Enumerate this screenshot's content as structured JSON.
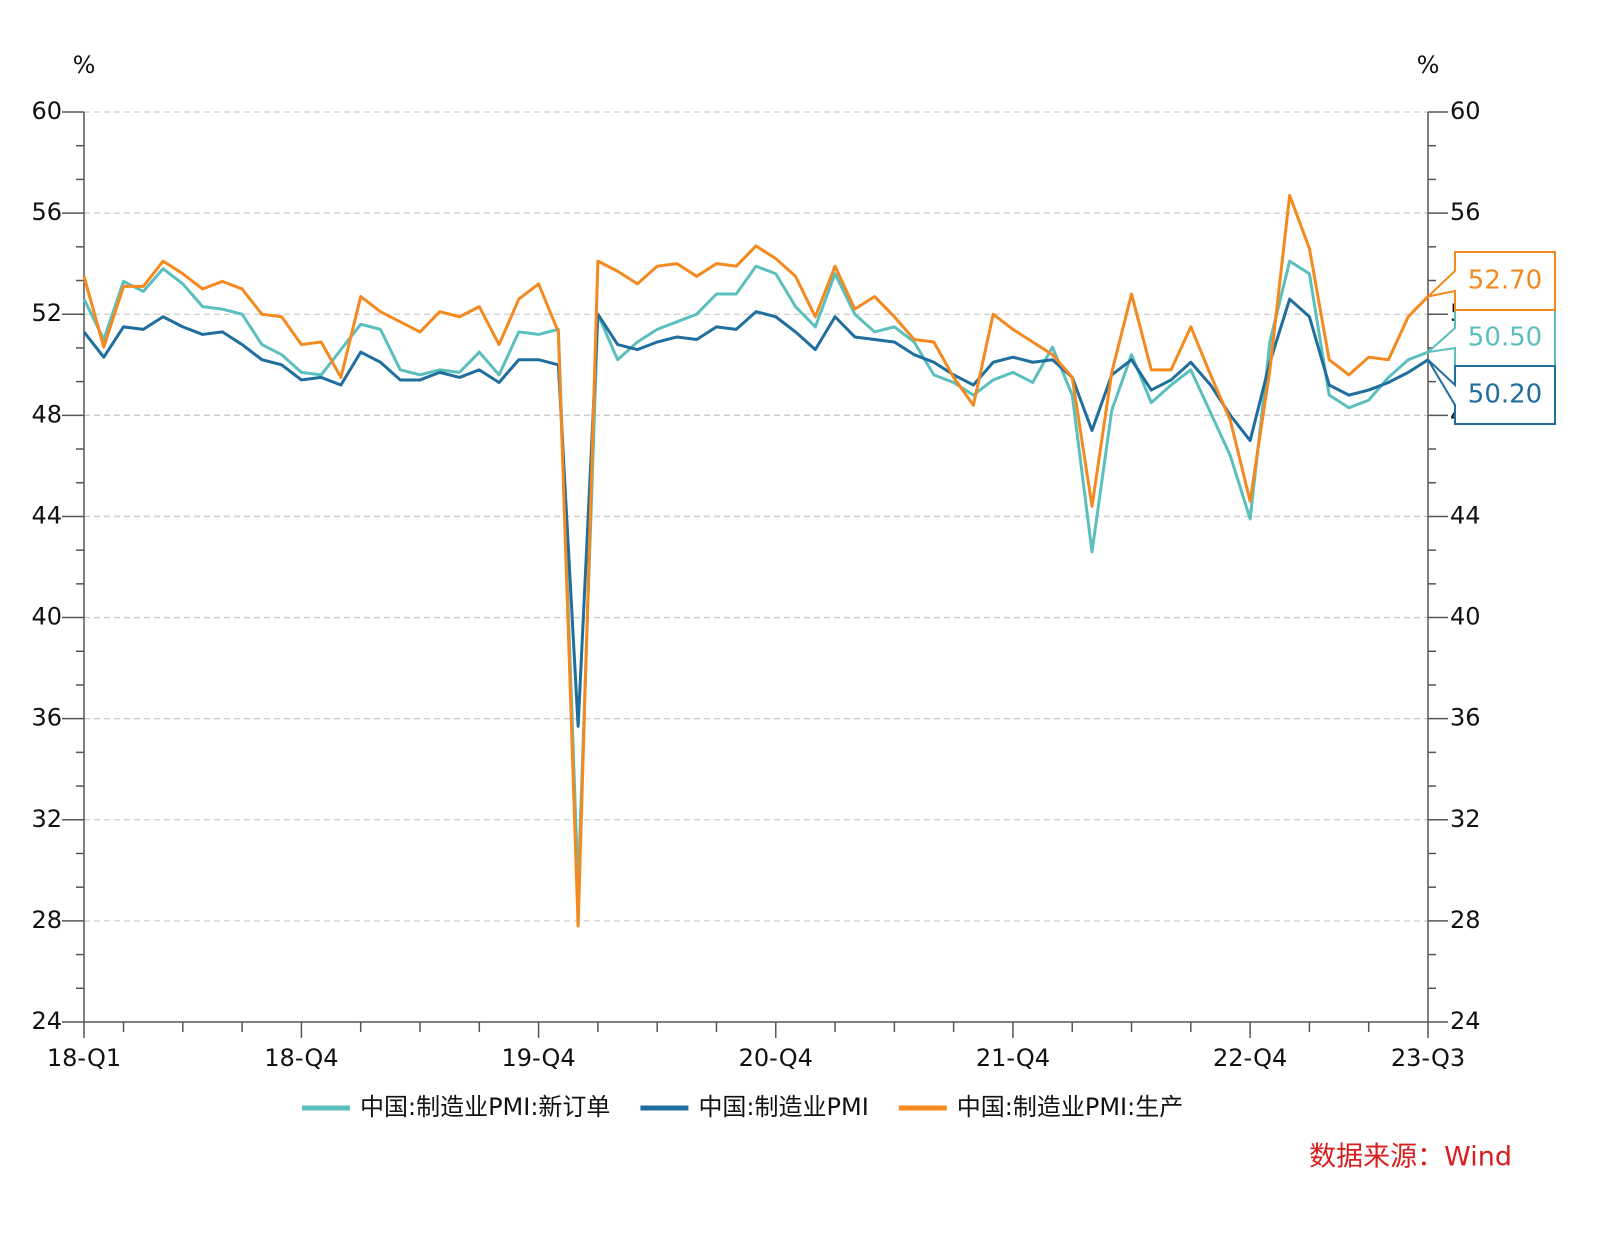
{
  "chart_data": {
    "type": "line",
    "left_unit": "%",
    "right_unit": "%",
    "source": "数据来源：Wind",
    "categories": [
      "18-Q1",
      null,
      null,
      null,
      null,
      null,
      null,
      null,
      null,
      null,
      null,
      "18-Q4",
      null,
      null,
      null,
      null,
      null,
      null,
      null,
      null,
      null,
      null,
      null,
      "19-Q4",
      null,
      null,
      null,
      null,
      null,
      null,
      null,
      null,
      null,
      null,
      null,
      "20-Q4",
      null,
      null,
      null,
      null,
      null,
      null,
      null,
      null,
      null,
      null,
      null,
      "21-Q4",
      null,
      null,
      null,
      null,
      null,
      null,
      null,
      null,
      null,
      null,
      null,
      "22-Q4",
      null,
      null,
      null,
      null,
      null,
      null,
      null,
      null,
      "23-Q3"
    ],
    "ylim": [
      24,
      60
    ],
    "yticks": [
      24,
      28,
      32,
      36,
      40,
      44,
      48,
      52,
      56,
      60
    ],
    "y2lim": [
      24,
      60
    ],
    "y2ticks": [
      24,
      28,
      32,
      36,
      40,
      44,
      48,
      52,
      56,
      60
    ],
    "grid": true,
    "series": [
      {
        "name": "中国:制造业PMI:新订单",
        "color": "#5bbfbd",
        "values": [
          52.6,
          51.0,
          53.3,
          52.9,
          53.8,
          53.2,
          52.3,
          52.2,
          52.0,
          50.8,
          50.4,
          49.7,
          49.6,
          50.6,
          51.6,
          51.4,
          49.8,
          49.6,
          49.8,
          49.7,
          50.5,
          49.6,
          51.3,
          51.2,
          51.4,
          29.3,
          52.0,
          50.2,
          50.9,
          51.4,
          51.7,
          52.0,
          52.8,
          52.8,
          53.9,
          53.6,
          52.3,
          51.5,
          53.6,
          52.0,
          51.3,
          51.5,
          50.9,
          49.6,
          49.3,
          48.8,
          49.4,
          49.7,
          49.3,
          50.7,
          48.8,
          42.6,
          48.2,
          50.4,
          48.5,
          49.2,
          49.8,
          48.1,
          46.4,
          43.9,
          50.9,
          54.1,
          53.6,
          48.8,
          48.3,
          48.6,
          49.5,
          50.2,
          50.5
        ],
        "value_labels": [
          null,
          null,
          null,
          null,
          null,
          null,
          null,
          null,
          null,
          null,
          null,
          null,
          null,
          null,
          null,
          null,
          null,
          null,
          null,
          null,
          null,
          null,
          null,
          null,
          null,
          null,
          null,
          null,
          null,
          null,
          null,
          null,
          null,
          null,
          null,
          null,
          null,
          null,
          null,
          null,
          null,
          null,
          null,
          null,
          null,
          null,
          null,
          null,
          null,
          null,
          null,
          null,
          null,
          null,
          null,
          null,
          null,
          null,
          null,
          null,
          null,
          null,
          null,
          null,
          null,
          null,
          null,
          null,
          "50.50"
        ]
      },
      {
        "name": "中国:制造业PMI",
        "color": "#1f6e9e",
        "values": [
          51.3,
          50.3,
          51.5,
          51.4,
          51.9,
          51.5,
          51.2,
          51.3,
          50.8,
          50.2,
          50.0,
          49.4,
          49.5,
          49.2,
          50.5,
          50.1,
          49.4,
          49.4,
          49.7,
          49.5,
          49.8,
          49.3,
          50.2,
          50.2,
          50.0,
          35.7,
          52.0,
          50.8,
          50.6,
          50.9,
          51.1,
          51.0,
          51.5,
          51.4,
          52.1,
          51.9,
          51.3,
          50.6,
          51.9,
          51.1,
          51.0,
          50.9,
          50.4,
          50.1,
          49.6,
          49.2,
          50.1,
          50.3,
          50.1,
          50.2,
          49.5,
          47.4,
          49.6,
          50.2,
          49.0,
          49.4,
          50.1,
          49.2,
          48.0,
          47.0,
          50.1,
          52.6,
          51.9,
          49.2,
          48.8,
          49.0,
          49.3,
          49.7,
          50.2
        ],
        "value_labels": [
          null,
          null,
          null,
          null,
          null,
          null,
          null,
          null,
          null,
          null,
          null,
          null,
          null,
          null,
          null,
          null,
          null,
          null,
          null,
          null,
          null,
          null,
          null,
          null,
          null,
          null,
          null,
          null,
          null,
          null,
          null,
          null,
          null,
          null,
          null,
          null,
          null,
          null,
          null,
          null,
          null,
          null,
          null,
          null,
          null,
          null,
          null,
          null,
          null,
          null,
          null,
          null,
          null,
          null,
          null,
          null,
          null,
          null,
          null,
          null,
          null,
          null,
          null,
          null,
          null,
          null,
          null,
          null,
          "50.20"
        ]
      },
      {
        "name": "中国:制造业PMI:生产",
        "color": "#f48a1f",
        "values": [
          53.5,
          50.7,
          53.1,
          53.1,
          54.1,
          53.6,
          53.0,
          53.3,
          53.0,
          52.0,
          51.9,
          50.8,
          50.9,
          49.5,
          52.7,
          52.1,
          51.7,
          51.3,
          52.1,
          51.9,
          52.3,
          50.8,
          52.6,
          53.2,
          51.3,
          27.8,
          54.1,
          53.7,
          53.2,
          53.9,
          54.0,
          53.5,
          54.0,
          53.9,
          54.7,
          54.2,
          53.5,
          51.9,
          53.9,
          52.2,
          52.7,
          51.9,
          51.0,
          50.9,
          49.5,
          48.4,
          52.0,
          51.4,
          50.9,
          50.4,
          49.5,
          44.4,
          49.7,
          52.8,
          49.8,
          49.8,
          51.5,
          49.6,
          47.8,
          44.6,
          49.8,
          56.7,
          54.6,
          50.2,
          49.6,
          50.3,
          50.2,
          51.9,
          52.7
        ],
        "value_labels": [
          null,
          null,
          null,
          null,
          null,
          null,
          null,
          null,
          null,
          null,
          null,
          null,
          null,
          null,
          null,
          null,
          null,
          null,
          null,
          null,
          null,
          null,
          null,
          null,
          null,
          null,
          null,
          null,
          null,
          null,
          null,
          null,
          null,
          null,
          null,
          null,
          null,
          null,
          null,
          null,
          null,
          null,
          null,
          null,
          null,
          null,
          null,
          null,
          null,
          null,
          null,
          null,
          null,
          null,
          null,
          null,
          null,
          null,
          null,
          null,
          null,
          null,
          null,
          null,
          null,
          null,
          null,
          null,
          "52.70"
        ]
      }
    ]
  }
}
